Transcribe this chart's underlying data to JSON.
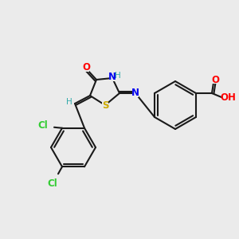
{
  "background_color": "#ebebeb",
  "bond_color": "#1a1a1a",
  "atom_colors": {
    "O": "#ff0000",
    "N": "#0000ee",
    "S": "#ccaa00",
    "Cl": "#33cc33",
    "H": "#33aaaa",
    "C": "#1a1a1a"
  },
  "fig_size": [
    3.0,
    3.0
  ],
  "dpi": 100
}
